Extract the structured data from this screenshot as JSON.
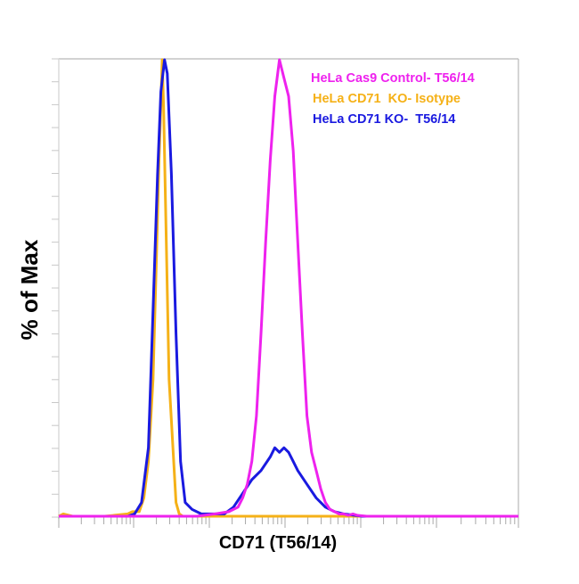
{
  "chart_data": {
    "type": "line",
    "subtype": "flow-cytometry-histogram-overlay",
    "title": "",
    "xlabel": "CD71 (T56/14)",
    "ylabel": "% of Max",
    "x_scale": "log (biexponential-like), unlabeled decades",
    "x_tick_labels": [],
    "y_tick_labels": [],
    "ylim": [
      0,
      100
    ],
    "grid": false,
    "legend_position": "top-right, inside plot",
    "legend": [
      {
        "label": "HeLa Cas9 Control- T56/14",
        "color": "#ee22ee"
      },
      {
        "label": "HeLa CD71  KO- Isotype",
        "color": "#f5b117"
      },
      {
        "label": "HeLa CD71 KO-  T56/14",
        "color": "#1a1ae0"
      }
    ],
    "x_relative_note": "x positions are fraction of axis width (0=left,1=right); y is % of Max",
    "series": [
      {
        "name": "HeLa CD71  KO- Isotype",
        "color": "#f5b117",
        "x": [
          0.0,
          0.01,
          0.03,
          0.1,
          0.15,
          0.16,
          0.175,
          0.185,
          0.195,
          0.205,
          0.212,
          0.218,
          0.222,
          0.225,
          0.228,
          0.234,
          0.24,
          0.255,
          0.262,
          0.27,
          1.0
        ],
        "y": [
          0,
          0.5,
          0,
          0,
          0.5,
          1,
          1,
          4,
          12,
          30,
          55,
          78,
          90,
          100,
          90,
          60,
          30,
          3,
          0.5,
          0,
          0
        ]
      },
      {
        "name": "HeLa CD71 KO-  T56/14",
        "color": "#1a1ae0",
        "x": [
          0.0,
          0.15,
          0.165,
          0.18,
          0.195,
          0.205,
          0.215,
          0.222,
          0.23,
          0.236,
          0.245,
          0.255,
          0.265,
          0.275,
          0.29,
          0.31,
          0.36,
          0.38,
          0.4,
          0.42,
          0.44,
          0.46,
          0.47,
          0.48,
          0.49,
          0.5,
          0.51,
          0.52,
          0.54,
          0.56,
          0.58,
          0.6,
          0.62,
          0.66,
          1.0
        ],
        "y": [
          0,
          0,
          0.5,
          3,
          15,
          45,
          75,
          93,
          100,
          97,
          75,
          40,
          12,
          3,
          1.5,
          0.5,
          0.5,
          2,
          5,
          8,
          10,
          13,
          15,
          14,
          15,
          14,
          12,
          10,
          7,
          4,
          2,
          1,
          0.5,
          0,
          0
        ]
      },
      {
        "name": "HeLa Cas9 Control- T56/14",
        "color": "#ee22ee",
        "x": [
          0.0,
          0.16,
          0.3,
          0.34,
          0.37,
          0.39,
          0.4,
          0.41,
          0.42,
          0.43,
          0.44,
          0.45,
          0.46,
          0.47,
          0.48,
          0.49,
          0.5,
          0.51,
          0.52,
          0.53,
          0.54,
          0.55,
          0.56,
          0.57,
          0.58,
          0.59,
          0.6,
          0.61,
          0.62,
          0.63,
          0.64,
          0.65,
          0.67,
          1.0
        ],
        "y": [
          0,
          0,
          0,
          0.5,
          1,
          2,
          4,
          7,
          12,
          22,
          40,
          60,
          78,
          92,
          100,
          96,
          92,
          80,
          60,
          40,
          22,
          14,
          10,
          6,
          3,
          1.5,
          1,
          0.5,
          0.5,
          0.2,
          0.5,
          0.2,
          0,
          0
        ]
      }
    ]
  },
  "legend": {
    "item_0": "HeLa Cas9 Control- T56/14",
    "item_1": "HeLa CD71  KO- Isotype",
    "item_2": "HeLa CD71 KO-  T56/14"
  },
  "axes": {
    "xlabel": "CD71 (T56/14)",
    "ylabel": "% of Max"
  },
  "colors": {
    "magenta": "#ee22ee",
    "orange": "#f5b117",
    "blue": "#1a1ae0",
    "axis": "#b8b8b8",
    "tick": "#a0a0a0"
  }
}
